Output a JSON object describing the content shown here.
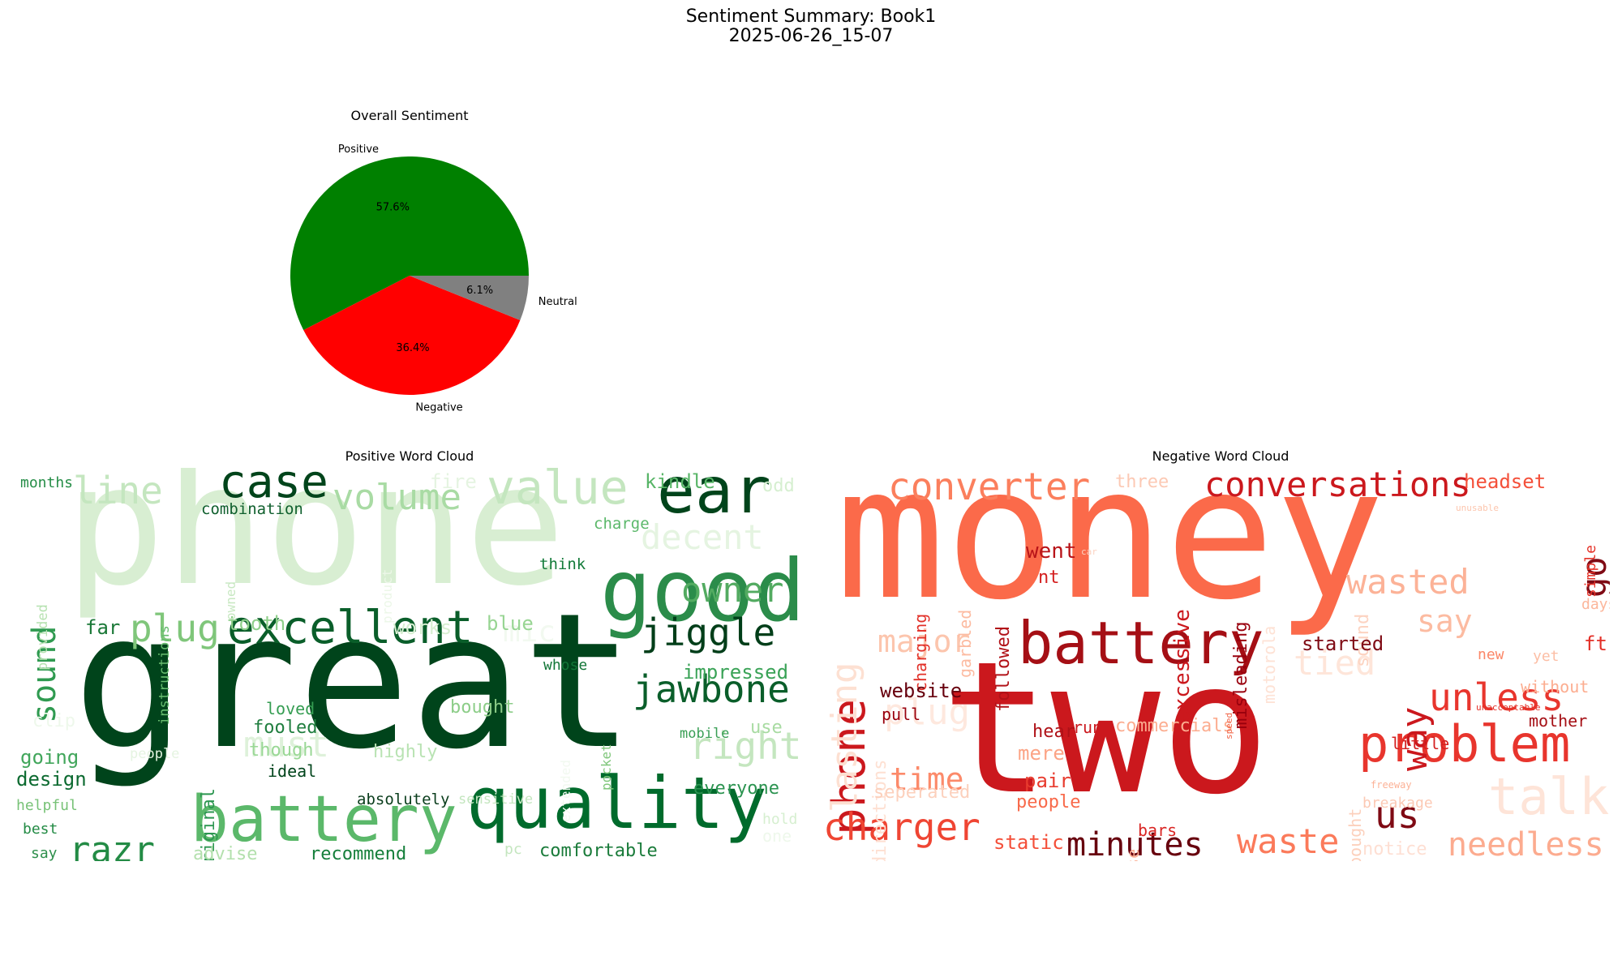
{
  "figure": {
    "title_line1": "Sentiment Summary: Book1",
    "title_line2": "2025-06-26_15-07"
  },
  "chart_data": [
    {
      "type": "pie",
      "title": "Overall Sentiment",
      "slices": [
        {
          "label": "Positive",
          "value": 57.6,
          "pct_label": "57.6%",
          "color": "#008000"
        },
        {
          "label": "Negative",
          "value": 36.4,
          "pct_label": "36.4%",
          "color": "#ff0000"
        },
        {
          "label": "Neutral",
          "value": 6.1,
          "pct_label": "6.1%",
          "color": "#808080"
        }
      ]
    },
    {
      "type": "wordcloud",
      "title": "Positive Word Cloud",
      "colormap": "Greens",
      "words": [
        {
          "text": "phone",
          "size": 205,
          "color": "#d8eed2"
        },
        {
          "text": "great",
          "size": 230,
          "color": "#00441b"
        },
        {
          "text": "good",
          "size": 105,
          "color": "#2b8c4a"
        },
        {
          "text": "quality",
          "size": 88,
          "color": "#006b2c"
        },
        {
          "text": "battery",
          "size": 78,
          "color": "#5bb86a"
        },
        {
          "text": "ear",
          "size": 78,
          "color": "#00441b"
        },
        {
          "text": "value",
          "size": 58,
          "color": "#c4e6bf"
        },
        {
          "text": "case",
          "size": 56,
          "color": "#00441b"
        },
        {
          "text": "excellent",
          "size": 56,
          "color": "#0a5e2a"
        },
        {
          "text": "line",
          "size": 46,
          "color": "#c4e6bf"
        },
        {
          "text": "volume",
          "size": 44,
          "color": "#a9dba4"
        },
        {
          "text": "decent",
          "size": 42,
          "color": "#e5f4e1"
        },
        {
          "text": "owner",
          "size": 42,
          "color": "#53ab61"
        },
        {
          "text": "jiggle",
          "size": 46,
          "color": "#003e19"
        },
        {
          "text": "jawbone",
          "size": 46,
          "color": "#0a5e2a"
        },
        {
          "text": "plug",
          "size": 46,
          "color": "#7fc67a"
        },
        {
          "text": "right",
          "size": 46,
          "color": "#c4e6bf"
        },
        {
          "text": "razr",
          "size": 44,
          "color": "#238b45"
        },
        {
          "text": "sound",
          "size": 40,
          "color": "#2f9a50"
        },
        {
          "text": "must",
          "size": 44,
          "color": "#def1da"
        },
        {
          "text": "mic",
          "size": 36,
          "color": "#f2f9f0"
        },
        {
          "text": "tooth",
          "size": 24,
          "color": "#8fcf8a"
        },
        {
          "text": "far",
          "size": 24,
          "color": "#1a7837"
        },
        {
          "text": "works",
          "size": 24,
          "color": "#d7efd1"
        },
        {
          "text": "blue",
          "size": 24,
          "color": "#98d593"
        },
        {
          "text": "impressed",
          "size": 24,
          "color": "#3aa357"
        },
        {
          "text": "kindle",
          "size": 24,
          "color": "#58b567"
        },
        {
          "text": "fire",
          "size": 24,
          "color": "#e5f4e1"
        },
        {
          "text": "odd",
          "size": 22,
          "color": "#d6efd0"
        },
        {
          "text": "months",
          "size": 18,
          "color": "#258d47"
        },
        {
          "text": "combination",
          "size": 19,
          "color": "#0f5f2d"
        },
        {
          "text": "charge",
          "size": 19,
          "color": "#5bb86a"
        },
        {
          "text": "think",
          "size": 19,
          "color": "#137b3a"
        },
        {
          "text": "whose",
          "size": 18,
          "color": "#127637"
        },
        {
          "text": "provided",
          "size": 17,
          "color": "#b7e2b1"
        },
        {
          "text": "instructions",
          "size": 17,
          "color": "#68bd6f"
        },
        {
          "text": "owned",
          "size": 16,
          "color": "#c8e8c2"
        },
        {
          "text": "product",
          "size": 16,
          "color": "#ecf7e8"
        },
        {
          "text": "clip",
          "size": 22,
          "color": "#eef8eb"
        },
        {
          "text": "going",
          "size": 24,
          "color": "#41a65b"
        },
        {
          "text": "design",
          "size": 24,
          "color": "#0c6a30"
        },
        {
          "text": "helpful",
          "size": 18,
          "color": "#78c277"
        },
        {
          "text": "best",
          "size": 18,
          "color": "#238b45"
        },
        {
          "text": "say",
          "size": 18,
          "color": "#2e8f4c"
        },
        {
          "text": "original",
          "size": 22,
          "color": "#2c9650"
        },
        {
          "text": "loved",
          "size": 20,
          "color": "#359d52"
        },
        {
          "text": "fooled",
          "size": 22,
          "color": "#207e3f"
        },
        {
          "text": "though",
          "size": 22,
          "color": "#9ad896"
        },
        {
          "text": "ideal",
          "size": 20,
          "color": "#00441b"
        },
        {
          "text": "highly",
          "size": 22,
          "color": "#b9e3b3"
        },
        {
          "text": "bought",
          "size": 22,
          "color": "#8ccd88"
        },
        {
          "text": "people",
          "size": 17,
          "color": "#e5f4e1"
        },
        {
          "text": "mobile",
          "size": 17,
          "color": "#3a9f55"
        },
        {
          "text": "use",
          "size": 22,
          "color": "#a8dba2"
        },
        {
          "text": "extended",
          "size": 16,
          "color": "#f2f9f0"
        },
        {
          "text": "pocket",
          "size": 16,
          "color": "#7fc67a"
        },
        {
          "text": "absolutely",
          "size": 19,
          "color": "#0a3d1c"
        },
        {
          "text": "sensitive",
          "size": 17,
          "color": "#c4e6bf"
        },
        {
          "text": "everyone",
          "size": 22,
          "color": "#2b9350"
        },
        {
          "text": "hold",
          "size": 18,
          "color": "#d6efd0"
        },
        {
          "text": "one",
          "size": 20,
          "color": "#eef8eb"
        },
        {
          "text": "advise",
          "size": 22,
          "color": "#b3e0ad"
        },
        {
          "text": "recommend",
          "size": 22,
          "color": "#157f3b"
        },
        {
          "text": "pc",
          "size": 18,
          "color": "#c4e6bf"
        },
        {
          "text": "comfortable",
          "size": 22,
          "color": "#1a7b3a"
        }
      ]
    },
    {
      "type": "wordcloud",
      "title": "Negative Word Cloud",
      "colormap": "Reds",
      "words": [
        {
          "text": "money",
          "size": 225,
          "color": "#fb6a4a"
        },
        {
          "text": "two",
          "size": 225,
          "color": "#cb181d"
        },
        {
          "text": "battery",
          "size": 72,
          "color": "#a50f15"
        },
        {
          "text": "problem",
          "size": 62,
          "color": "#e8352d"
        },
        {
          "text": "converter",
          "size": 46,
          "color": "#fb7f5d"
        },
        {
          "text": "conversations",
          "size": 42,
          "color": "#cb181d"
        },
        {
          "text": "phone",
          "size": 56,
          "color": "#cb181d"
        },
        {
          "text": "lasting",
          "size": 44,
          "color": "#fde0d2"
        },
        {
          "text": "talk",
          "size": 62,
          "color": "#fee4d8"
        },
        {
          "text": "wasted",
          "size": 42,
          "color": "#fcb297"
        },
        {
          "text": "unless",
          "size": 46,
          "color": "#e8352d"
        },
        {
          "text": "charger",
          "size": 46,
          "color": "#ef4533"
        },
        {
          "text": "waste",
          "size": 42,
          "color": "#fb7a5a"
        },
        {
          "text": "minutes",
          "size": 40,
          "color": "#67000d"
        },
        {
          "text": "needless",
          "size": 40,
          "color": "#fcab8f"
        },
        {
          "text": "us",
          "size": 46,
          "color": "#7f0a14"
        },
        {
          "text": "way",
          "size": 44,
          "color": "#cb181d"
        },
        {
          "text": "go",
          "size": 42,
          "color": "#7f0a14"
        },
        {
          "text": "say",
          "size": 38,
          "color": "#fcbba1"
        },
        {
          "text": "tied",
          "size": 42,
          "color": "#fee5d9"
        },
        {
          "text": "major",
          "size": 38,
          "color": "#fcc5ad"
        },
        {
          "text": "plug",
          "size": 44,
          "color": "#fee8de"
        },
        {
          "text": "time",
          "size": 38,
          "color": "#fc8a6a"
        },
        {
          "text": "headset",
          "size": 24,
          "color": "#f44f39"
        },
        {
          "text": "three",
          "size": 22,
          "color": "#fcc9b4"
        },
        {
          "text": "went",
          "size": 26,
          "color": "#b81419"
        },
        {
          "text": "nt",
          "size": 22,
          "color": "#d42020"
        },
        {
          "text": "excessive",
          "size": 26,
          "color": "#cb181d"
        },
        {
          "text": "misleading",
          "size": 22,
          "color": "#99000d"
        },
        {
          "text": "motorola",
          "size": 20,
          "color": "#fee2d5"
        },
        {
          "text": "charging",
          "size": 20,
          "color": "#e23028"
        },
        {
          "text": "garbled",
          "size": 20,
          "color": "#fcbba1"
        },
        {
          "text": "followed",
          "size": 22,
          "color": "#b11218"
        },
        {
          "text": "sound",
          "size": 22,
          "color": "#fcd3c1"
        },
        {
          "text": "simple",
          "size": 18,
          "color": "#e53228"
        },
        {
          "text": "unusable",
          "size": 11,
          "color": "#fcc5ad"
        },
        {
          "text": "car",
          "size": 11,
          "color": "#fcd3c1"
        },
        {
          "text": "days",
          "size": 18,
          "color": "#fcb69b"
        },
        {
          "text": "ft",
          "size": 24,
          "color": "#e33028"
        },
        {
          "text": "directions",
          "size": 22,
          "color": "#fee0d2"
        },
        {
          "text": "website",
          "size": 24,
          "color": "#67000d"
        },
        {
          "text": "pull",
          "size": 20,
          "color": "#99000d"
        },
        {
          "text": "run",
          "size": 20,
          "color": "#cb181d"
        },
        {
          "text": "commercials",
          "size": 22,
          "color": "#fcad90"
        },
        {
          "text": "started",
          "size": 24,
          "color": "#7f0a14"
        },
        {
          "text": "speed",
          "size": 11,
          "color": "#f1664a"
        },
        {
          "text": "new",
          "size": 18,
          "color": "#fb8768"
        },
        {
          "text": "yet",
          "size": 18,
          "color": "#fcbea5"
        },
        {
          "text": "without",
          "size": 20,
          "color": "#fcad90"
        },
        {
          "text": "mother",
          "size": 20,
          "color": "#a50f15"
        },
        {
          "text": "unacceptable",
          "size": 11,
          "color": "#e33028"
        },
        {
          "text": "little",
          "size": 20,
          "color": "#d42020"
        },
        {
          "text": "mere",
          "size": 24,
          "color": "#fca486"
        },
        {
          "text": "hear",
          "size": 22,
          "color": "#af1117"
        },
        {
          "text": "pair",
          "size": 24,
          "color": "#e83b2e"
        },
        {
          "text": "people",
          "size": 22,
          "color": "#f8694a"
        },
        {
          "text": "seperated",
          "size": 22,
          "color": "#fcd0bc"
        },
        {
          "text": "static",
          "size": 24,
          "color": "#f44f39"
        },
        {
          "text": "use",
          "size": 20,
          "color": "#fcae92"
        },
        {
          "text": "bought",
          "size": 20,
          "color": "#fcd0bc"
        },
        {
          "text": "breakage",
          "size": 18,
          "color": "#fcc9b4"
        },
        {
          "text": "freeway",
          "size": 12,
          "color": "#fcb297"
        },
        {
          "text": "bars",
          "size": 20,
          "color": "#d92523"
        },
        {
          "text": "notice",
          "size": 22,
          "color": "#fedfd3"
        }
      ]
    }
  ]
}
